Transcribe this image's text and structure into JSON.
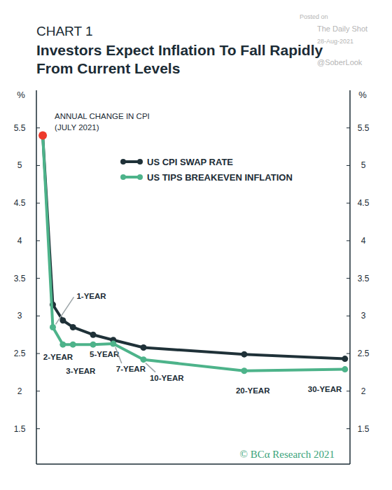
{
  "chart_data": {
    "type": "line",
    "label": "CHART 1",
    "title": "Investors Expect Inflation To Fall Rapidly From Current Levels",
    "ylabel": "%",
    "x": [
      0,
      1,
      2,
      3,
      5,
      7,
      10,
      20,
      30
    ],
    "point_labels": [
      null,
      "1-YEAR",
      "2-YEAR",
      "3-YEAR",
      "5-YEAR",
      "7-YEAR",
      "10-YEAR",
      "20-YEAR",
      "30-YEAR"
    ],
    "series": [
      {
        "name": "US CPI SWAP RATE",
        "color": "#1f3138",
        "marker": "circle",
        "type": "line",
        "values": [
          5.4,
          3.15,
          2.94,
          2.85,
          2.75,
          2.68,
          2.58,
          2.49,
          2.43
        ]
      },
      {
        "name": "US TIPS BREAKEVEN INFLATION",
        "color": "#4db38a",
        "marker": "circle",
        "type": "line",
        "values": [
          5.4,
          2.85,
          2.62,
          2.62,
          2.62,
          2.63,
          2.42,
          2.27,
          2.29
        ]
      },
      {
        "name": "ANNUAL CHANGE IN CPI (JULY 2021)",
        "color": "#ee3a2c",
        "marker": "circle",
        "type": "scatter",
        "values": [
          5.4,
          null,
          null,
          null,
          null,
          null,
          null,
          null,
          null
        ]
      }
    ],
    "xlim": [
      -0.63,
      30.5
    ],
    "ylim": [
      1.03,
      6.0
    ],
    "yticks": [
      1.5,
      2,
      2.5,
      3,
      3.5,
      4,
      4.5,
      5,
      5.5
    ],
    "tick_labels": "y",
    "grid": false,
    "legend": "top",
    "source": "© BCα Research 2021",
    "watermark": [
      "Posted on",
      "The Daily Shot",
      "28-Aug-2021",
      "@SoberLook"
    ]
  }
}
